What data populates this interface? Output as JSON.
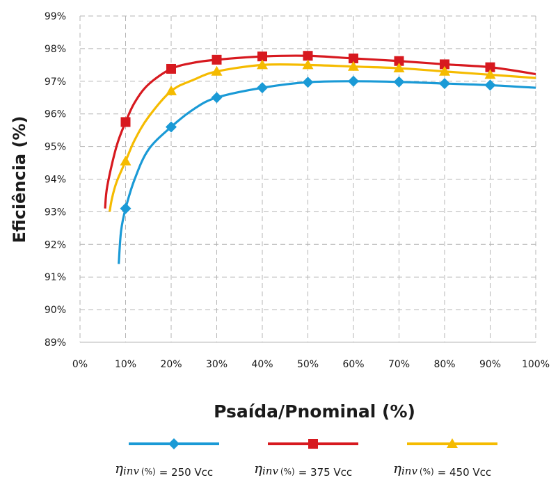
{
  "chart_data": {
    "type": "line",
    "xlabel": "Psaída/Pnominal (%)",
    "ylabel": "Eficiência (%)",
    "xlim": [
      0,
      100
    ],
    "ylim": [
      89,
      99
    ],
    "x_ticks": [
      "0%",
      "10%",
      "20%",
      "30%",
      "40%",
      "50%",
      "60%",
      "70%",
      "80%",
      "90%",
      "100%"
    ],
    "y_ticks": [
      "89%",
      "90%",
      "91%",
      "92%",
      "93%",
      "94%",
      "95%",
      "96%",
      "97%",
      "98%",
      "99%"
    ],
    "grid": "dashed vertical and horizontal",
    "legend_position": "bottom",
    "series": [
      {
        "legend_symbol": "η",
        "legend_subscript": "inv",
        "legend_unit": "(%)",
        "legend_value": "= 250 Vcc",
        "color": "#1a9ad6",
        "marker": "diamond",
        "x": [
          10,
          20,
          30,
          40,
          50,
          60,
          70,
          80,
          90
        ],
        "values": [
          93.1,
          95.6,
          96.5,
          96.8,
          96.97,
          97.0,
          96.98,
          96.93,
          96.88
        ],
        "curve_x": [
          8.5,
          9,
          10,
          12,
          15,
          20,
          25,
          30,
          40,
          50,
          60,
          70,
          80,
          90,
          100
        ],
        "curve_y": [
          91.4,
          92.4,
          93.1,
          94.0,
          94.9,
          95.6,
          96.15,
          96.5,
          96.8,
          96.97,
          97.0,
          96.98,
          96.93,
          96.88,
          96.8
        ]
      },
      {
        "legend_symbol": "η",
        "legend_subscript": "inv",
        "legend_unit": "(%)",
        "legend_value": "= 375 Vcc",
        "color": "#d7191f",
        "marker": "square",
        "x": [
          10,
          20,
          30,
          40,
          50,
          60,
          70,
          80,
          90
        ],
        "values": [
          95.75,
          97.38,
          97.66,
          97.76,
          97.78,
          97.7,
          97.62,
          97.52,
          97.43
        ],
        "curve_x": [
          5.5,
          6,
          8,
          10,
          12,
          15,
          20,
          25,
          30,
          40,
          50,
          60,
          70,
          80,
          90,
          100
        ],
        "curve_y": [
          93.1,
          93.8,
          95.0,
          95.75,
          96.35,
          96.9,
          97.38,
          97.57,
          97.66,
          97.76,
          97.78,
          97.7,
          97.62,
          97.52,
          97.43,
          97.22
        ]
      },
      {
        "legend_symbol": "η",
        "legend_subscript": "inv",
        "legend_unit": "(%)",
        "legend_value": "= 450 Vcc",
        "color": "#f5bb00",
        "marker": "triangle",
        "x": [
          10,
          20,
          30,
          40,
          50,
          60,
          70,
          80,
          90
        ],
        "values": [
          94.55,
          96.7,
          97.3,
          97.5,
          97.5,
          97.45,
          97.4,
          97.3,
          97.2
        ],
        "curve_x": [
          6.5,
          7,
          8,
          10,
          12,
          15,
          20,
          25,
          30,
          40,
          50,
          60,
          70,
          80,
          90,
          100
        ],
        "curve_y": [
          93.0,
          93.4,
          93.9,
          94.55,
          95.2,
          95.9,
          96.7,
          97.05,
          97.3,
          97.5,
          97.5,
          97.45,
          97.4,
          97.3,
          97.2,
          97.1
        ]
      }
    ]
  }
}
